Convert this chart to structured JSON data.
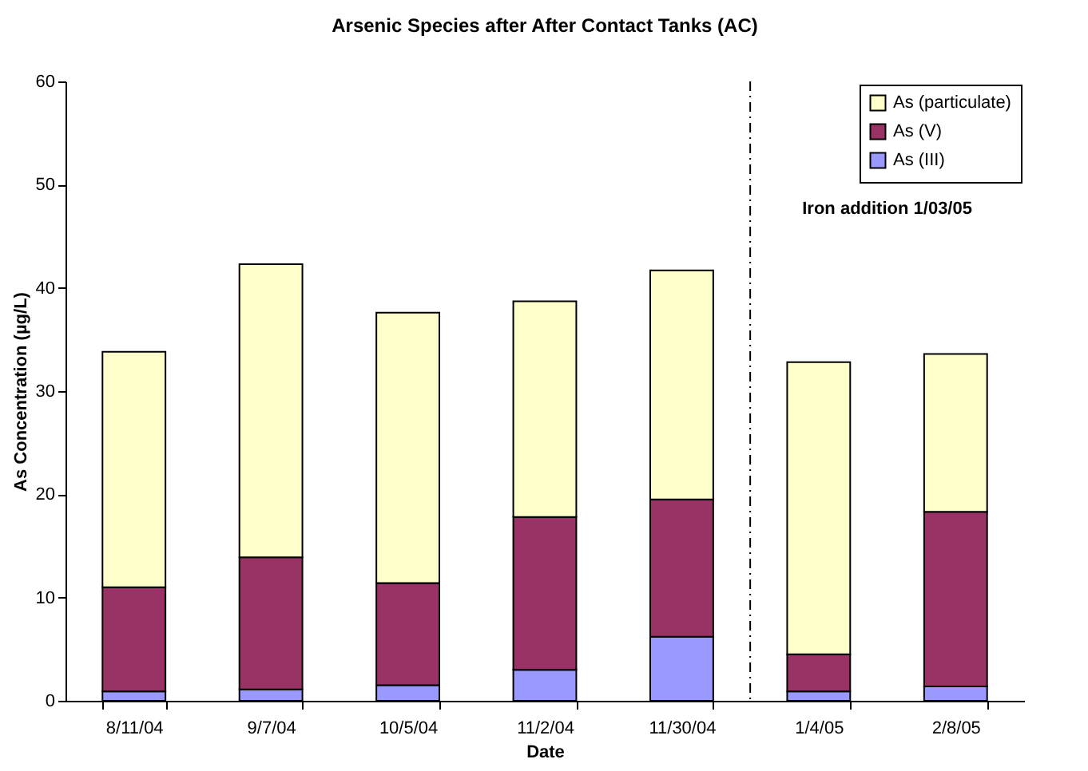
{
  "chart_data": {
    "type": "bar",
    "title": "Arsenic Species after After Contact Tanks (AC)",
    "xlabel": "Date",
    "ylabel": "As Concentration (µg/L)",
    "categories": [
      "8/11/04",
      "9/7/04",
      "10/5/04",
      "11/2/04",
      "11/30/04",
      "1/4/05",
      "2/8/05"
    ],
    "stacked": true,
    "series": [
      {
        "name": "As (III)",
        "color": "#9999ff",
        "values": [
          0.9,
          1.1,
          1.5,
          3.0,
          6.2,
          0.9,
          1.4
        ]
      },
      {
        "name": "As (V)",
        "color": "#993366",
        "values": [
          10.1,
          12.8,
          9.9,
          14.8,
          13.3,
          3.6,
          16.9
        ]
      },
      {
        "name": "As (particulate)",
        "color": "#ffffcc",
        "values": [
          22.8,
          28.4,
          26.2,
          20.9,
          22.2,
          28.3,
          15.3
        ]
      }
    ],
    "ylim": [
      0,
      60
    ],
    "yticks": [
      0,
      10,
      20,
      30,
      40,
      50,
      60
    ],
    "grid": false,
    "legend": "top right",
    "annotations": [
      "Iron addition 1/03/05"
    ]
  }
}
